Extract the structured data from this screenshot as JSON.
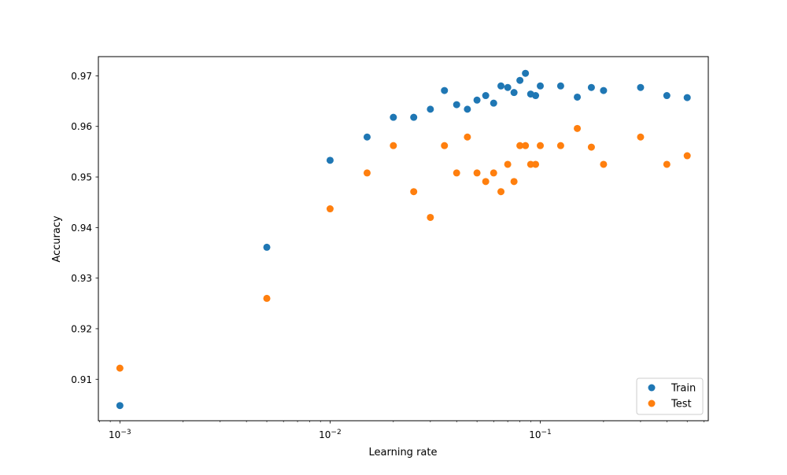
{
  "chart_data": {
    "type": "scatter",
    "title": "",
    "xlabel": "Learning rate",
    "ylabel": "Accuracy",
    "xscale": "log",
    "xlim": [
      0.00079,
      0.63
    ],
    "ylim": [
      0.9018,
      0.9738
    ],
    "grid": false,
    "legend_position": "lower right",
    "x_ticks": [
      {
        "value": 0.001,
        "base": "10",
        "exp": "−3"
      },
      {
        "value": 0.01,
        "base": "10",
        "exp": "−2"
      },
      {
        "value": 0.1,
        "base": "10",
        "exp": "−1"
      }
    ],
    "y_ticks": [
      {
        "value": 0.91,
        "label": "0.91"
      },
      {
        "value": 0.92,
        "label": "0.92"
      },
      {
        "value": 0.93,
        "label": "0.93"
      },
      {
        "value": 0.94,
        "label": "0.94"
      },
      {
        "value": 0.95,
        "label": "0.95"
      },
      {
        "value": 0.96,
        "label": "0.96"
      },
      {
        "value": 0.97,
        "label": "0.97"
      }
    ],
    "series": [
      {
        "name": "Train",
        "color": "#1f77b4",
        "points": [
          [
            0.001,
            0.9048
          ],
          [
            0.005,
            0.9361
          ],
          [
            0.01,
            0.9533
          ],
          [
            0.015,
            0.9579
          ],
          [
            0.02,
            0.9618
          ],
          [
            0.025,
            0.9618
          ],
          [
            0.03,
            0.9634
          ],
          [
            0.035,
            0.9671
          ],
          [
            0.04,
            0.9643
          ],
          [
            0.045,
            0.9634
          ],
          [
            0.05,
            0.9652
          ],
          [
            0.055,
            0.9661
          ],
          [
            0.06,
            0.9646
          ],
          [
            0.065,
            0.968
          ],
          [
            0.07,
            0.9677
          ],
          [
            0.075,
            0.9667
          ],
          [
            0.08,
            0.9691
          ],
          [
            0.085,
            0.9705
          ],
          [
            0.09,
            0.9664
          ],
          [
            0.095,
            0.9661
          ],
          [
            0.1,
            0.968
          ],
          [
            0.125,
            0.968
          ],
          [
            0.15,
            0.9658
          ],
          [
            0.175,
            0.9677
          ],
          [
            0.2,
            0.9671
          ],
          [
            0.3,
            0.9677
          ],
          [
            0.4,
            0.9661
          ],
          [
            0.5,
            0.9657
          ]
        ]
      },
      {
        "name": "Test",
        "color": "#ff7f0e",
        "points": [
          [
            0.001,
            0.9122
          ],
          [
            0.005,
            0.926
          ],
          [
            0.01,
            0.9437
          ],
          [
            0.015,
            0.9508
          ],
          [
            0.02,
            0.9562
          ],
          [
            0.025,
            0.9471
          ],
          [
            0.03,
            0.942
          ],
          [
            0.035,
            0.9562
          ],
          [
            0.04,
            0.9508
          ],
          [
            0.045,
            0.9579
          ],
          [
            0.05,
            0.9508
          ],
          [
            0.055,
            0.9491
          ],
          [
            0.06,
            0.9508
          ],
          [
            0.065,
            0.9471
          ],
          [
            0.07,
            0.9525
          ],
          [
            0.075,
            0.9491
          ],
          [
            0.08,
            0.9562
          ],
          [
            0.085,
            0.9562
          ],
          [
            0.09,
            0.9525
          ],
          [
            0.095,
            0.9525
          ],
          [
            0.1,
            0.9562
          ],
          [
            0.125,
            0.9562
          ],
          [
            0.15,
            0.9596
          ],
          [
            0.175,
            0.9559
          ],
          [
            0.2,
            0.9525
          ],
          [
            0.3,
            0.9579
          ],
          [
            0.4,
            0.9525
          ],
          [
            0.5,
            0.9542
          ]
        ]
      }
    ]
  }
}
